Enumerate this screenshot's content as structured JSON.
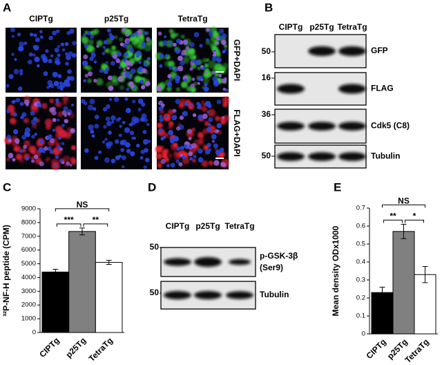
{
  "panel_labels": [
    "A",
    "B",
    "C",
    "D",
    "E"
  ],
  "micrographs": {
    "columns": [
      "CIPTg",
      "p25Tg",
      "TetraTg"
    ],
    "rows": [
      "GFP+DAPI",
      "FLAG+DAPI"
    ]
  },
  "blot_b": {
    "lanes": [
      "CIPTg",
      "p25Tg",
      "TetraTg"
    ],
    "rows": [
      {
        "marker": "50",
        "label": "GFP"
      },
      {
        "marker": "16",
        "label": "FLAG"
      },
      {
        "marker": "36",
        "label": "Cdk5 (C8)"
      },
      {
        "marker": "50",
        "label": "Tubulin"
      }
    ]
  },
  "blot_d": {
    "lanes": [
      "CIPTg",
      "p25Tg",
      "TetraTg"
    ],
    "rows": [
      {
        "marker": "50",
        "label": "p-GSK-3β",
        "sublabel": "(Ser9)"
      },
      {
        "marker": "50",
        "label": "Tubulin"
      }
    ]
  },
  "chart_data": [
    {
      "type": "bar",
      "y_label": "³²P-NF-H peptide (CPM)",
      "categories": [
        "CIPTg",
        "p25Tg",
        "TetraTg"
      ],
      "values": [
        4400,
        7350,
        5100
      ],
      "errors": [
        200,
        250,
        150
      ],
      "colors": [
        "#000000",
        "#808080",
        "#ffffff"
      ],
      "ylim": [
        0,
        9000
      ],
      "yticks": [
        0,
        1000,
        2000,
        3000,
        4000,
        5000,
        6000,
        7000,
        8000,
        9000
      ],
      "comparisons": [
        {
          "label": "***",
          "between": [
            0,
            1
          ]
        },
        {
          "label": "**",
          "between": [
            1,
            2
          ]
        },
        {
          "label": "NS",
          "between": [
            0,
            2
          ]
        }
      ]
    },
    {
      "type": "bar",
      "y_label": "Mean density ODx1000",
      "categories": [
        "CIPTg",
        "p25Tg",
        "TetraTg"
      ],
      "values": [
        0.23,
        0.57,
        0.33
      ],
      "errors": [
        0.03,
        0.04,
        0.045
      ],
      "colors": [
        "#000000",
        "#808080",
        "#ffffff"
      ],
      "ylim": [
        0,
        0.7
      ],
      "yticks": [
        0,
        0.1,
        0.2,
        0.3,
        0.4,
        0.5,
        0.6,
        0.7
      ],
      "comparisons": [
        {
          "label": "**",
          "between": [
            0,
            1
          ]
        },
        {
          "label": "*",
          "between": [
            1,
            2
          ]
        },
        {
          "label": "NS",
          "between": [
            0,
            2
          ]
        }
      ]
    }
  ]
}
